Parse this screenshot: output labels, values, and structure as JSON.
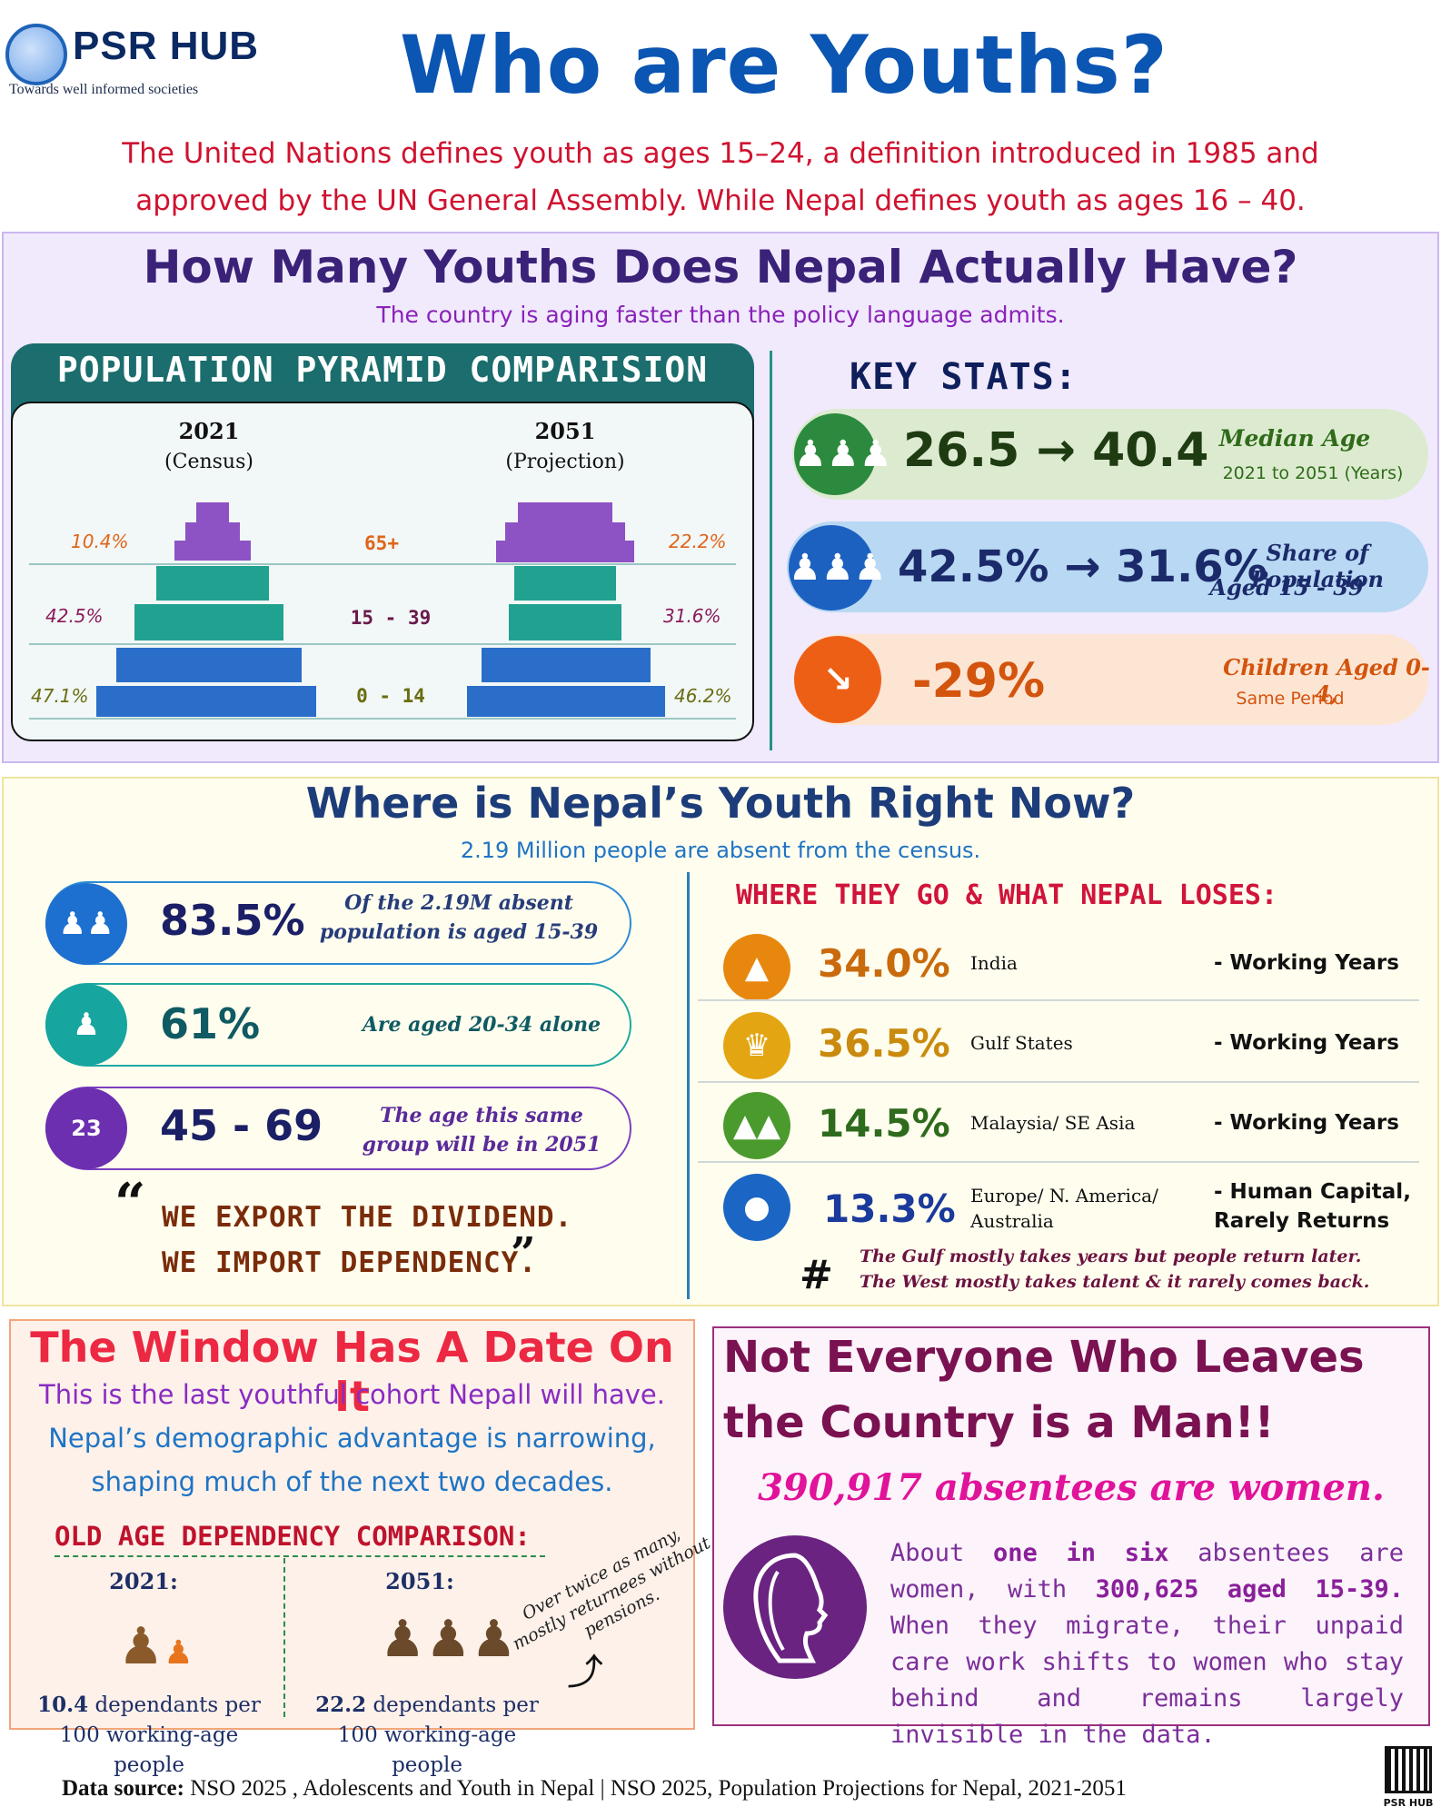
{
  "header": {
    "logo_name": "PSR HUB",
    "logo_tagline": "Towards well informed societies",
    "title": "Who are Youths?",
    "intro": "The United Nations defines youth as ages 15–24, a definition introduced in 1985 and approved by the UN General Assembly. While Nepal defines youth as ages 16 – 40."
  },
  "section1": {
    "title": "How Many Youths Does Nepal Actually Have?",
    "subtitle": "The country is aging faster than the policy language admits.",
    "pyramid": {
      "title": "POPULATION PYRAMID COMPARISION",
      "left_year": "2021",
      "left_sub": "(Census)",
      "right_year": "2051",
      "right_sub": "(Projection)",
      "groups": [
        "65+",
        "15 - 39",
        "0 - 14"
      ],
      "left_pct": [
        "10.4%",
        "42.5%",
        "47.1%"
      ],
      "right_pct": [
        "22.2%",
        "31.6%",
        "46.2%"
      ]
    },
    "key_stats": {
      "title": "KEY STATS:",
      "items": [
        {
          "value": "26.5 → 40.4",
          "label": "Median Age",
          "sublabel": "2021 to 2051 (Years)",
          "icon": "people-group-icon"
        },
        {
          "value": "42.5% → 31.6%",
          "label": "Share of Population",
          "sublabel": "Aged 15 - 39",
          "icon": "people-group-icon"
        },
        {
          "value": "-29%",
          "label": "Children Aged 0-4,",
          "sublabel": "Same Period",
          "icon": "declining-chart-icon"
        }
      ]
    }
  },
  "section2": {
    "title": "Where is Nepal’s Youth Right Now?",
    "subtitle": "2.19 Million people are absent from the census.",
    "stats": [
      {
        "value": "83.5%",
        "label": "Of the 2.19M absent population is aged 15-39"
      },
      {
        "value": "61%",
        "label": "Are aged 20-34 alone"
      },
      {
        "value": "45 - 69",
        "label": "The age this same group will be in 2051"
      }
    ],
    "calendar_day": "23",
    "quote_l1": "WE EXPORT THE DIVIDEND.",
    "quote_l2": "WE IMPORT DEPENDENCY.",
    "destinations_title": "WHERE THEY GO & WHAT NEPAL LOSES:",
    "destinations": [
      {
        "pct": "34.0%",
        "name": "India",
        "loss": "- Working Years",
        "color": "#e8870e"
      },
      {
        "pct": "36.5%",
        "name": "Gulf States",
        "loss": "- Working Years",
        "color": "#e3a512"
      },
      {
        "pct": "14.5%",
        "name": "Malaysia/ SE Asia",
        "loss": "- Working Years",
        "color": "#4b9a2e"
      },
      {
        "pct": "13.3%",
        "name": "Europe/ N. America/ Australia",
        "loss": "- Human Capital, Rarely Returns",
        "color": "#1b66c4"
      }
    ],
    "note_l1": "The Gulf mostly takes years but people return later.",
    "note_l2": "The West mostly takes talent & it rarely comes back."
  },
  "section3": {
    "title": "The Window Has A Date On It",
    "line1": "This is the last youthful cohort Nepall will have.",
    "line2": "Nepal’s demographic advantage is narrowing,",
    "line3": "shaping much of the next two decades.",
    "oad_title": "OLD AGE DEPENDENCY COMPARISON:",
    "left_year": "2021:",
    "left_value": "10.4",
    "left_text": "dependants per 100 working-age people",
    "right_year": "2051:",
    "right_value": "22.2",
    "right_text": "dependants per 100 working-age people",
    "annotation": "Over twice as many, mostly returnees without pensions."
  },
  "section4": {
    "title_l1": "Not Everyone Who Leaves",
    "title_l2": "the Country is a Man!!",
    "stat": "390,917 absentees are women.",
    "body_a": "About ",
    "body_b": "one in six",
    "body_c": " absentees are women, with ",
    "body_d": "300,625 aged 15-39.",
    "body_e": " When they migrate, their unpaid care work shifts to women who stay behind and remains largely invisible in the data."
  },
  "footer": {
    "label": "Data source:",
    "text": " NSO 2025 , Adolescents and Youth in Nepal | NSO 2025, Population Projections for Nepal, 2021-2051",
    "qr_label": "PSR HUB"
  }
}
